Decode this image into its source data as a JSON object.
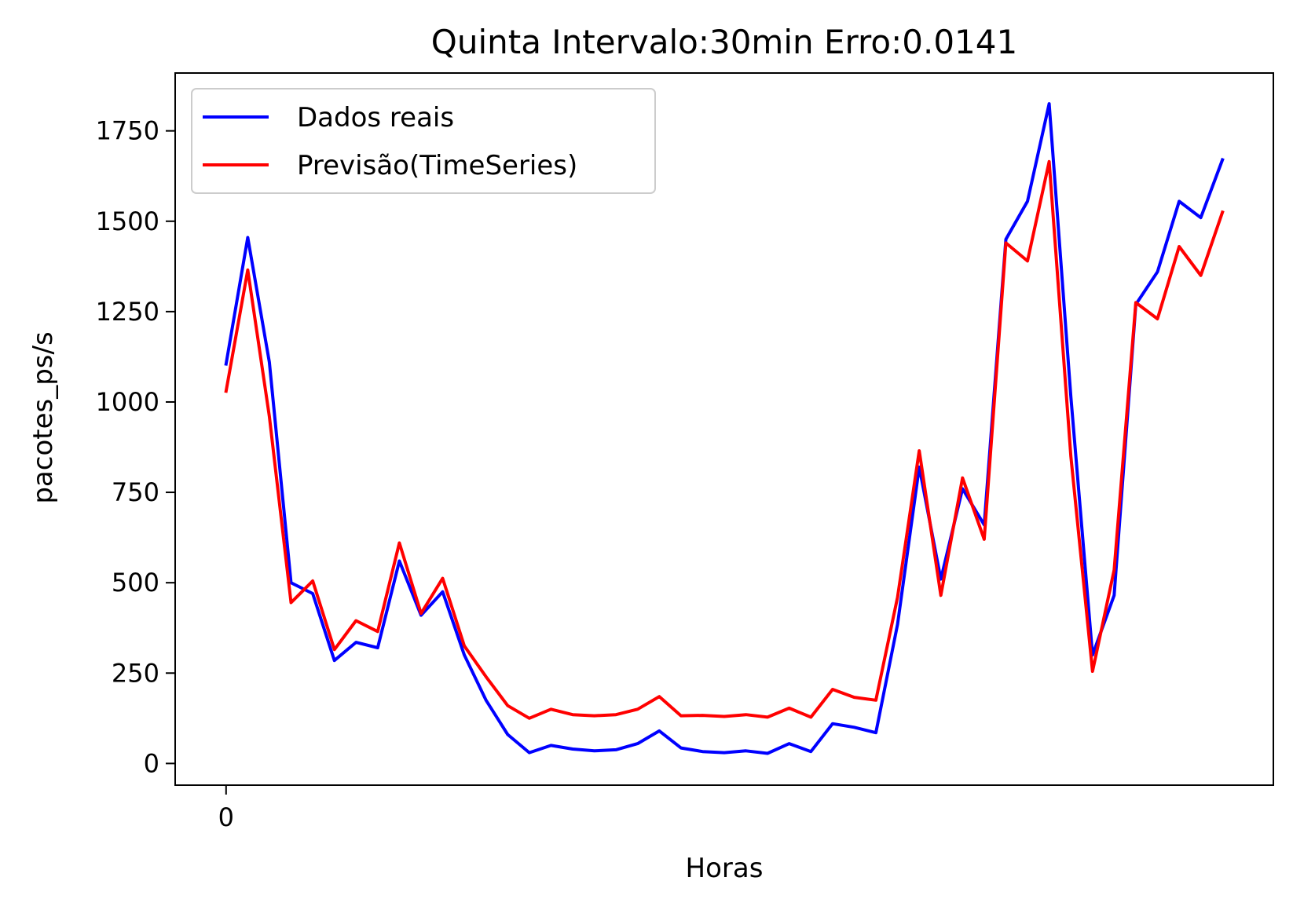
{
  "chart_data": {
    "type": "line",
    "title": "Quinta Intervalo:30min Erro:0.0141",
    "xlabel": "Horas",
    "ylabel": "pacotes_ps/s",
    "xticks": [
      "0"
    ],
    "yticks": [
      0,
      250,
      500,
      750,
      1000,
      1250,
      1500,
      1750
    ],
    "xlim": [
      -2.35,
      48.35
    ],
    "ylim": [
      -60,
      1910
    ],
    "grid": false,
    "legend_position": "upper-left",
    "x": [
      0,
      1,
      2,
      3,
      4,
      5,
      6,
      7,
      8,
      9,
      10,
      11,
      12,
      13,
      14,
      15,
      16,
      17,
      18,
      19,
      20,
      21,
      22,
      23,
      24,
      25,
      26,
      27,
      28,
      29,
      30,
      31,
      32,
      33,
      34,
      35,
      36,
      37,
      38,
      39,
      40,
      41,
      42,
      43,
      44,
      45,
      46
    ],
    "series": [
      {
        "name": "Dados reais",
        "color": "#0000ff",
        "values": [
          1105,
          1455,
          1110,
          500,
          470,
          285,
          335,
          320,
          560,
          410,
          475,
          300,
          175,
          80,
          30,
          50,
          40,
          35,
          38,
          55,
          90,
          43,
          33,
          30,
          35,
          28,
          55,
          33,
          110,
          100,
          85,
          385,
          820,
          510,
          760,
          660,
          1450,
          1555,
          1825,
          1015,
          300,
          465,
          1270,
          1360,
          1555,
          1510,
          1670
        ]
      },
      {
        "name": "Previsão(TimeSeries)",
        "color": "#ff0000",
        "values": [
          1030,
          1365,
          960,
          445,
          505,
          315,
          395,
          365,
          610,
          415,
          512,
          325,
          240,
          160,
          125,
          150,
          135,
          132,
          135,
          150,
          185,
          132,
          133,
          130,
          135,
          128,
          153,
          128,
          205,
          183,
          175,
          460,
          865,
          465,
          790,
          620,
          1440,
          1390,
          1665,
          850,
          255,
          535,
          1275,
          1230,
          1430,
          1350,
          1525
        ]
      }
    ]
  }
}
